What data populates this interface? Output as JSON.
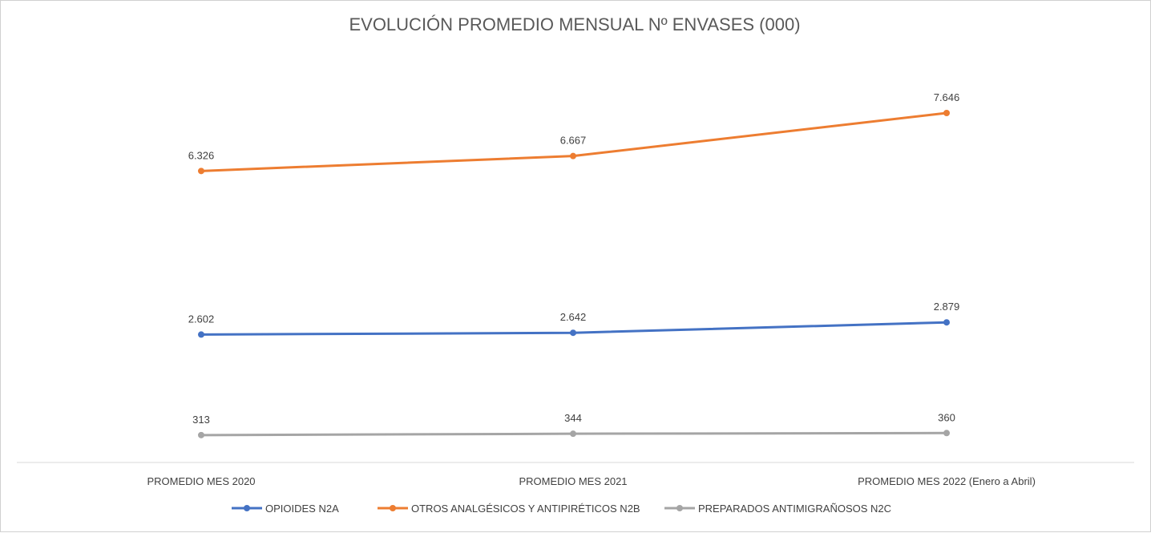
{
  "chart_data": {
    "type": "line",
    "title": "EVOLUCIÓN PROMEDIO MENSUAL Nº ENVASES (000)",
    "xlabel": "",
    "ylabel": "",
    "categories": [
      "PROMEDIO MES 2020",
      "PROMEDIO MES 2021",
      "PROMEDIO MES 2022 (Enero a Abril)"
    ],
    "ylim": [
      0,
      9000
    ],
    "grid": false,
    "legend_position": "bottom",
    "series": [
      {
        "name": "OPIOIDES N2A",
        "color": "#4472c4",
        "values": [
          2602,
          2642,
          2879
        ],
        "labels": [
          "2.602",
          "2.642",
          "2.879"
        ]
      },
      {
        "name": "OTROS ANALGÉSICOS Y ANTIPIRÉTICOS N2B",
        "color": "#ed7d31",
        "values": [
          6326,
          6667,
          7646
        ],
        "labels": [
          "6.326",
          "6.667",
          "7.646"
        ]
      },
      {
        "name": "PREPARADOS ANTIMIGRAÑOSOS N2C",
        "color": "#a5a5a5",
        "values": [
          313,
          344,
          360
        ],
        "labels": [
          "313",
          "344",
          "360"
        ]
      }
    ]
  }
}
